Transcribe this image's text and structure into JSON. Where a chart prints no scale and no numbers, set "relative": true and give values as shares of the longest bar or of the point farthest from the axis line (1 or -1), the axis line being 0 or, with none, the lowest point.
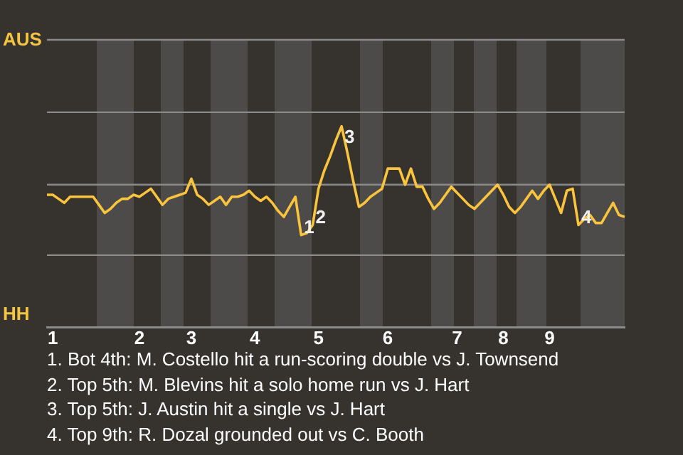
{
  "chart_data": {
    "type": "line",
    "relative": true,
    "categories": [
      null,
      "1",
      null,
      null,
      null,
      null,
      null,
      null,
      null,
      null,
      null,
      null,
      null,
      null,
      null,
      null,
      "2",
      null,
      null,
      null,
      null,
      null,
      null,
      null,
      null,
      "3",
      null,
      null,
      null,
      null,
      null,
      null,
      null,
      null,
      null,
      null,
      "4",
      null,
      null,
      null,
      null,
      null,
      null,
      null,
      null,
      null,
      null,
      "5",
      null,
      null,
      null,
      null,
      null,
      null,
      null,
      null,
      null,
      null,
      null,
      "6",
      null,
      null,
      null,
      null,
      null,
      null,
      null,
      null,
      null,
      null,
      null,
      "7",
      null,
      null,
      null,
      null,
      null,
      null,
      null,
      "8",
      null,
      null,
      null,
      null,
      null,
      null,
      null,
      "9",
      null,
      null,
      null,
      null,
      null,
      null,
      null,
      null,
      null,
      null,
      null,
      null,
      null
    ],
    "series": [
      {
        "color": "#fcc43c",
        "values": [
          0.66,
          0.66,
          0.64,
          0.62,
          0.65,
          0.65,
          0.65,
          0.65,
          0.65,
          0.61,
          0.57,
          0.59,
          0.62,
          0.64,
          0.64,
          0.66,
          0.65,
          0.67,
          0.69,
          0.65,
          0.61,
          0.64,
          0.65,
          0.66,
          0.67,
          0.74,
          0.66,
          0.64,
          0.61,
          0.63,
          0.65,
          0.61,
          0.65,
          0.65,
          0.66,
          0.68,
          0.65,
          0.63,
          0.65,
          0.62,
          0.58,
          0.55,
          0.6,
          0.65,
          0.46,
          0.47,
          0.51,
          0.69,
          0.78,
          0.85,
          0.93,
          1,
          0.87,
          0.73,
          0.6,
          0.62,
          0.65,
          0.67,
          0.69,
          0.79,
          0.79,
          0.79,
          0.71,
          0.79,
          0.7,
          0.7,
          0.64,
          0.59,
          0.62,
          0.66,
          0.7,
          0.67,
          0.64,
          0.61,
          0.59,
          0.62,
          0.65,
          0.68,
          0.71,
          0.66,
          0.6,
          0.57,
          0.6,
          0.64,
          0.68,
          0.64,
          0.68,
          0.71,
          0.64,
          0.57,
          0.68,
          0.69,
          0.51,
          0.54,
          0.56,
          0.52,
          0.52,
          0.57,
          0.62,
          0.56,
          0.55
        ]
      }
    ],
    "legend": false,
    "marker": "none",
    "line_style": "solid",
    "ref_lines": [
      {
        "axis": "y",
        "value": 0.36,
        "color": "#8a8a8a"
      },
      {
        "axis": "y",
        "value": 0.71,
        "color": "#8a8a8a"
      },
      {
        "axis": "y",
        "value": 1.07,
        "color": "#8a8a8a"
      },
      {
        "axis": "y",
        "value": 1.43,
        "color": "#8a8a8a"
      }
    ],
    "annotations": [
      "AUS",
      "HH",
      {
        "text": "1",
        "y": 0.46
      },
      {
        "text": "2",
        "y": 0.51
      },
      {
        "text": "3",
        "y": 1
      },
      {
        "text": "4",
        "y": 0.51
      },
      "1. Bot 4th: M. Costello hit a run-scoring double vs J. Townsend",
      "2. Top 5th: M. Blevins hit a solo home run vs J. Hart",
      "3. Top 5th: J. Austin hit a single vs J. Hart",
      "4. Top 9th: R. Dozal grounded out vs C. Booth"
    ]
  }
}
